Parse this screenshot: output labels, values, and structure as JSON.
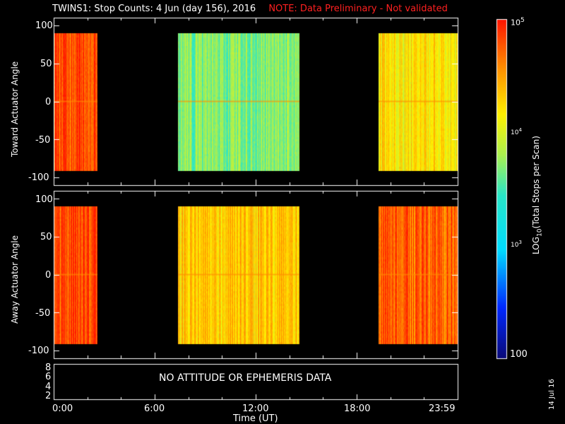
{
  "title": {
    "main": "TWINS1: Stop Counts:  4 Jun (day 156), 2016",
    "note": "NOTE: Data Preliminary - Not validated",
    "note_color": "#ff2020"
  },
  "panels": [
    {
      "ylabel": "Toward Actuator Angle",
      "yticks": [
        "100",
        "50",
        "0",
        "-50",
        "-100"
      ]
    },
    {
      "ylabel": "Away Actuator Angle",
      "yticks": [
        "100",
        "50",
        "0",
        "-50",
        "-100"
      ]
    }
  ],
  "status_panel": {
    "yticks": [
      "8",
      "6",
      "4",
      "2"
    ],
    "message": "NO ATTITUDE OR EPHEMERIS DATA"
  },
  "xaxis": {
    "ticks": [
      "0:00",
      "6:00",
      "12:00",
      "18:00",
      "23:59"
    ],
    "label": "Time (UT)"
  },
  "colorbar": {
    "label": "LOG10(Total Stops per Scan)",
    "ticks": [
      "10^5",
      "10^4",
      "10^3",
      "100"
    ]
  },
  "footer_date": "14 Jul 16",
  "chart_data": [
    {
      "type": "heatmap",
      "ylabel": "Toward Actuator Angle",
      "xlim_hours": [
        0,
        24
      ],
      "ylim": [
        -110,
        110
      ],
      "scale": "log10",
      "zrange": [
        100,
        100000
      ],
      "data_intervals_hours": [
        [
          0.0,
          2.6
        ],
        [
          7.4,
          14.6
        ],
        [
          19.3,
          24.0
        ]
      ],
      "data_angle_range": [
        -90,
        90
      ],
      "approx_log10_counts": {
        "interval_1": 4.8,
        "interval_2": 3.7,
        "interval_3": 4.2
      }
    },
    {
      "type": "heatmap",
      "ylabel": "Away Actuator Angle",
      "xlim_hours": [
        0,
        24
      ],
      "ylim": [
        -110,
        110
      ],
      "scale": "log10",
      "zrange": [
        100,
        100000
      ],
      "data_intervals_hours": [
        [
          0.0,
          2.6
        ],
        [
          7.4,
          14.6
        ],
        [
          19.3,
          24.0
        ]
      ],
      "data_angle_range": [
        -90,
        90
      ],
      "approx_log10_counts": {
        "interval_1": 4.8,
        "interval_2": 4.3,
        "interval_3": 4.7
      }
    }
  ]
}
